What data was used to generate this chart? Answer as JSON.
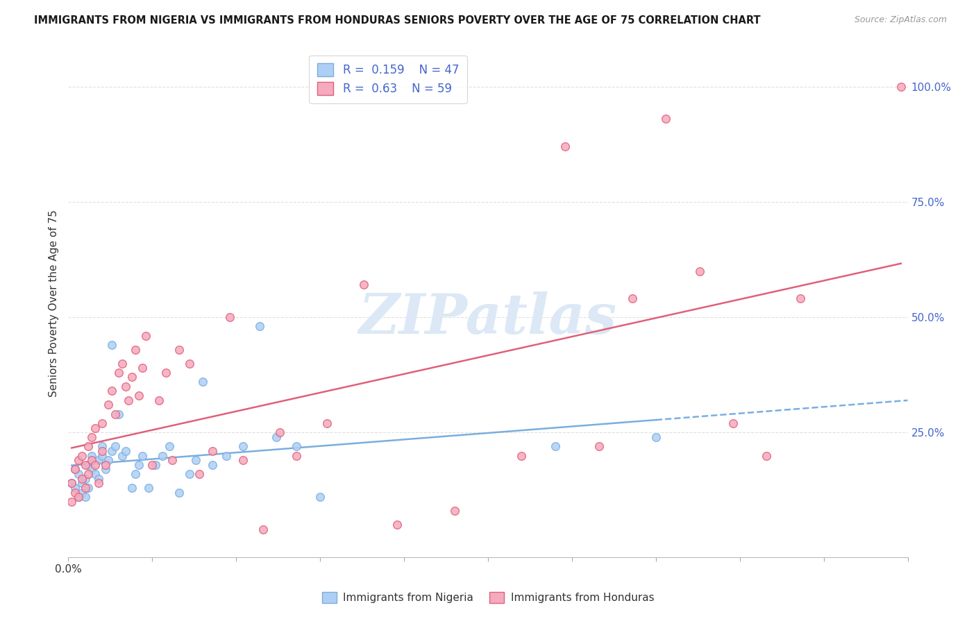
{
  "title": "IMMIGRANTS FROM NIGERIA VS IMMIGRANTS FROM HONDURAS SENIORS POVERTY OVER THE AGE OF 75 CORRELATION CHART",
  "source": "Source: ZipAtlas.com",
  "ylabel": "Seniors Poverty Over the Age of 75",
  "xlim": [
    0.0,
    0.25
  ],
  "ylim": [
    -0.02,
    1.08
  ],
  "nigeria_R": 0.159,
  "nigeria_N": 47,
  "honduras_R": 0.63,
  "honduras_N": 59,
  "nigeria_color": "#aecff5",
  "honduras_color": "#f5aabe",
  "nigeria_edge_color": "#7aaee0",
  "honduras_edge_color": "#e0607a",
  "nigeria_line_color": "#7aaee0",
  "honduras_line_color": "#e0607a",
  "nigeria_x": [
    0.001,
    0.002,
    0.002,
    0.003,
    0.003,
    0.004,
    0.004,
    0.005,
    0.005,
    0.006,
    0.006,
    0.007,
    0.007,
    0.008,
    0.009,
    0.009,
    0.01,
    0.01,
    0.011,
    0.012,
    0.013,
    0.013,
    0.014,
    0.015,
    0.016,
    0.017,
    0.019,
    0.02,
    0.021,
    0.022,
    0.024,
    0.026,
    0.028,
    0.03,
    0.033,
    0.036,
    0.038,
    0.04,
    0.043,
    0.047,
    0.052,
    0.057,
    0.062,
    0.068,
    0.075,
    0.145,
    0.175
  ],
  "nigeria_y": [
    0.14,
    0.13,
    0.17,
    0.11,
    0.16,
    0.14,
    0.12,
    0.15,
    0.11,
    0.13,
    0.18,
    0.17,
    0.2,
    0.16,
    0.15,
    0.19,
    0.2,
    0.22,
    0.17,
    0.19,
    0.44,
    0.21,
    0.22,
    0.29,
    0.2,
    0.21,
    0.13,
    0.16,
    0.18,
    0.2,
    0.13,
    0.18,
    0.2,
    0.22,
    0.12,
    0.16,
    0.19,
    0.36,
    0.18,
    0.2,
    0.22,
    0.48,
    0.24,
    0.22,
    0.11,
    0.22,
    0.24
  ],
  "honduras_x": [
    0.001,
    0.001,
    0.002,
    0.002,
    0.003,
    0.003,
    0.004,
    0.004,
    0.005,
    0.005,
    0.006,
    0.006,
    0.007,
    0.007,
    0.008,
    0.008,
    0.009,
    0.01,
    0.01,
    0.011,
    0.012,
    0.013,
    0.014,
    0.015,
    0.016,
    0.017,
    0.018,
    0.019,
    0.02,
    0.021,
    0.022,
    0.023,
    0.025,
    0.027,
    0.029,
    0.031,
    0.033,
    0.036,
    0.039,
    0.043,
    0.048,
    0.052,
    0.058,
    0.063,
    0.068,
    0.077,
    0.088,
    0.098,
    0.115,
    0.135,
    0.148,
    0.158,
    0.168,
    0.178,
    0.188,
    0.198,
    0.208,
    0.218,
    0.248
  ],
  "honduras_y": [
    0.1,
    0.14,
    0.12,
    0.17,
    0.11,
    0.19,
    0.15,
    0.2,
    0.13,
    0.18,
    0.16,
    0.22,
    0.19,
    0.24,
    0.18,
    0.26,
    0.14,
    0.21,
    0.27,
    0.18,
    0.31,
    0.34,
    0.29,
    0.38,
    0.4,
    0.35,
    0.32,
    0.37,
    0.43,
    0.33,
    0.39,
    0.46,
    0.18,
    0.32,
    0.38,
    0.19,
    0.43,
    0.4,
    0.16,
    0.21,
    0.5,
    0.19,
    0.04,
    0.25,
    0.2,
    0.27,
    0.57,
    0.05,
    0.08,
    0.2,
    0.87,
    0.22,
    0.54,
    0.93,
    0.6,
    0.27,
    0.2,
    0.54,
    1.0
  ],
  "watermark_text": "ZIPatlas",
  "watermark_color": "#dce8f5",
  "grid_color": "#e0e0e0",
  "background_color": "#ffffff",
  "right_tick_color": "#4466cc",
  "text_color": "#333333",
  "title_color": "#1a1a1a"
}
